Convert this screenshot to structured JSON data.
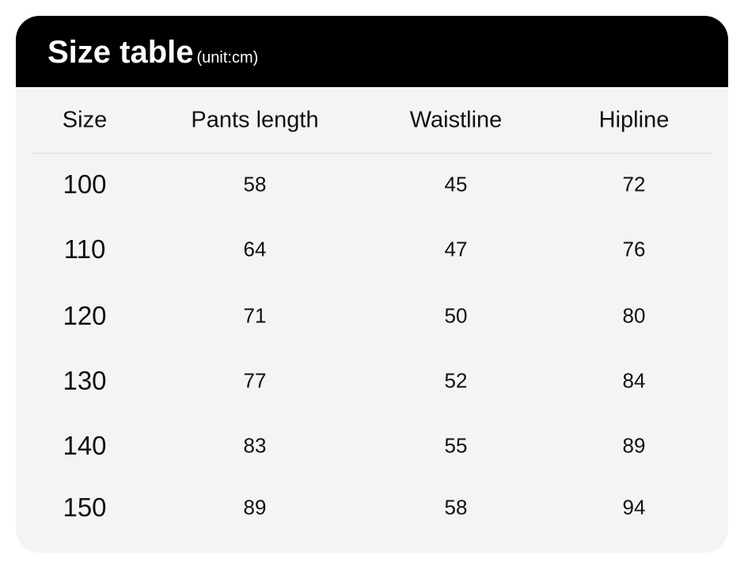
{
  "title": "Size table",
  "unit": "(unit:cm)",
  "columns": [
    "Size",
    "Pants length",
    "Waistline",
    "Hipline"
  ],
  "rows": [
    [
      "100",
      "58",
      "45",
      "72"
    ],
    [
      "110",
      "64",
      "47",
      "76"
    ],
    [
      "120",
      "71",
      "50",
      "80"
    ],
    [
      "130",
      "77",
      "52",
      "84"
    ],
    [
      "140",
      "83",
      "55",
      "89"
    ],
    [
      "150",
      "89",
      "58",
      "94"
    ]
  ],
  "colors": {
    "header_bg": "#000000",
    "body_bg": "#f4f4f4",
    "header_text": "#ffffff"
  }
}
